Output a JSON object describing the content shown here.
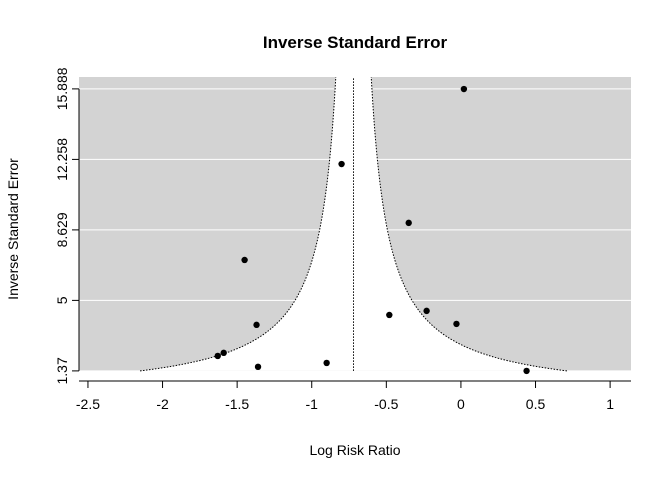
{
  "chart_data": {
    "type": "scatter",
    "title": "Inverse Standard Error",
    "xlabel": "Log Risk Ratio",
    "ylabel": "Inverse Standard Error",
    "x": [
      0.02,
      -0.8,
      -0.35,
      -1.45,
      -1.37,
      -0.48,
      -0.23,
      -0.03,
      -1.63,
      -1.59,
      -1.36,
      -0.9,
      0.44
    ],
    "values": [
      15.88,
      12.02,
      8.99,
      7.08,
      3.74,
      4.25,
      4.46,
      3.79,
      2.14,
      2.3,
      1.58,
      1.78,
      1.37
    ],
    "color": "#000000",
    "estimate": -0.72,
    "funnel_z": 1.96,
    "xlim": [
      -2.56,
      1.14
    ],
    "ylim": [
      0.85,
      16.5
    ],
    "xticks": [
      -2.5,
      -2,
      -1.5,
      -1,
      -0.5,
      0,
      0.5,
      1
    ],
    "yticks": [
      1.37,
      5,
      8.629,
      12.258,
      15.888
    ],
    "grid": true
  }
}
